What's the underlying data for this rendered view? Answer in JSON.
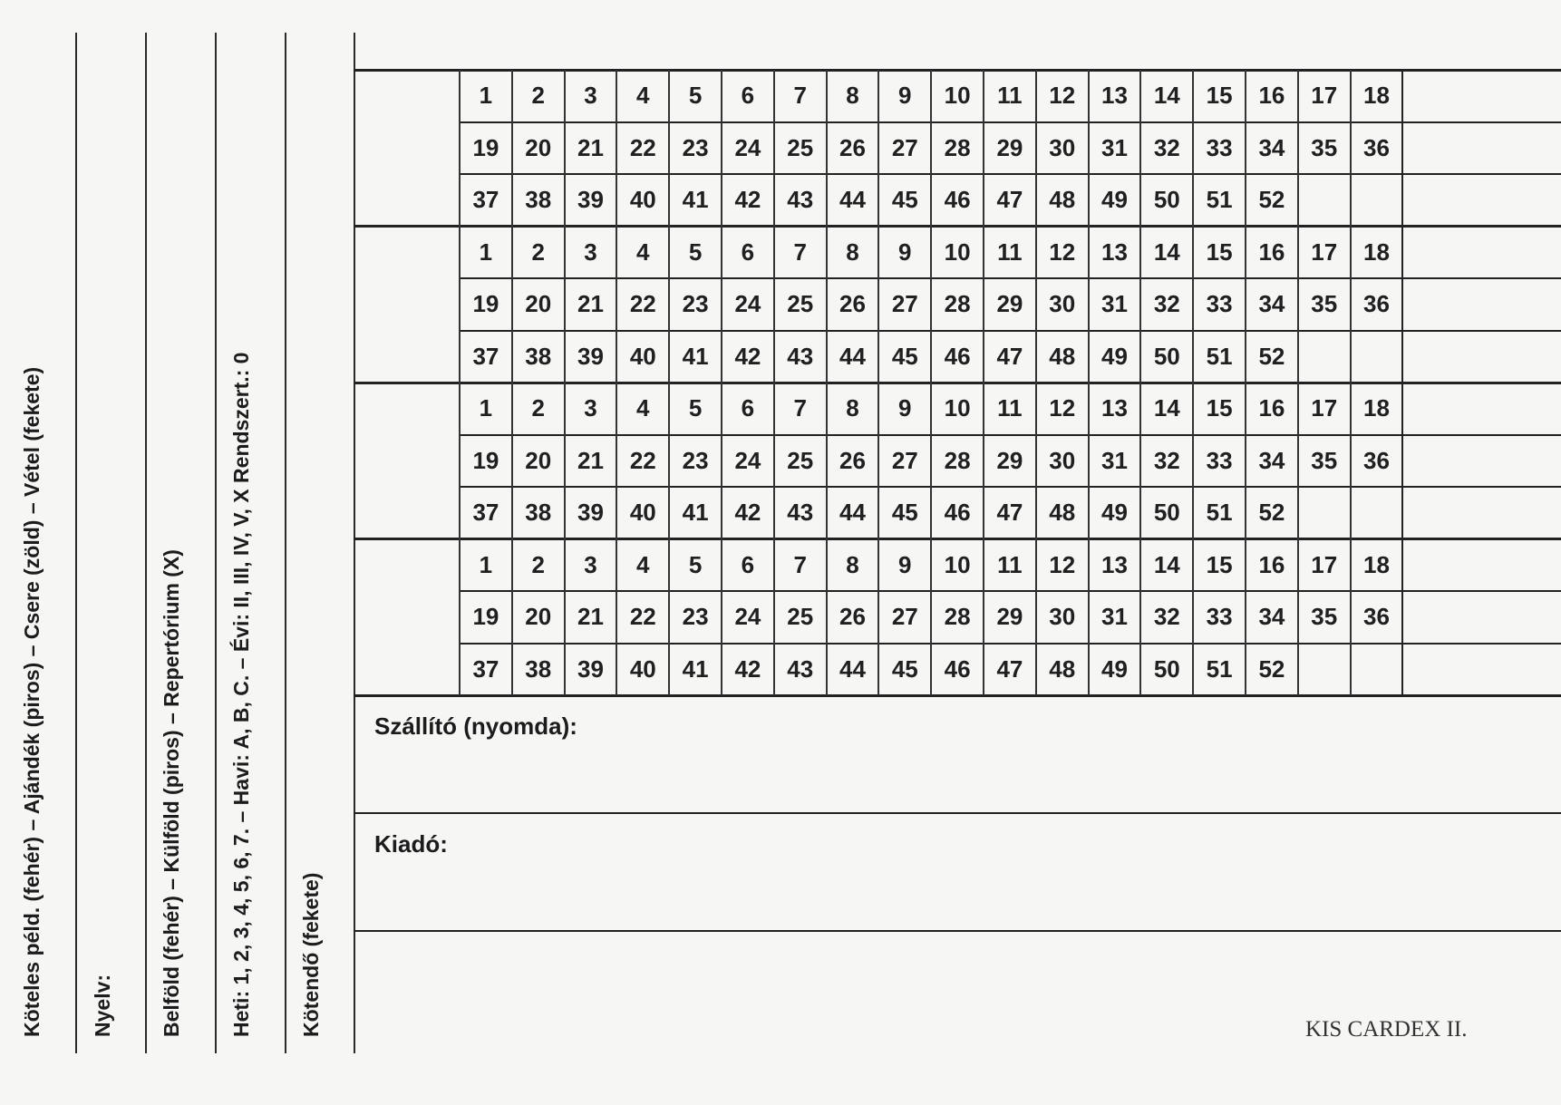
{
  "side_labels": [
    "Köteles péld. (fehér) – Ajándék (piros) – Csere (zöld) – Vétel (fekete)",
    "Nyelv:",
    "Belföld (fehér) – Külföld (piros) – Repertórium (X)",
    "Heti: 1, 2, 3, 4, 5, 6, 7. – Havi: A, B, C. – Évi: II, III, IV, V, X Rendszert.: 0",
    "Kötendő (fekete)"
  ],
  "grid": {
    "blocks": 4,
    "rows": [
      [
        "1",
        "2",
        "3",
        "4",
        "5",
        "6",
        "7",
        "8",
        "9",
        "10",
        "11",
        "12",
        "13",
        "14",
        "15",
        "16",
        "17",
        "18"
      ],
      [
        "19",
        "20",
        "21",
        "22",
        "23",
        "24",
        "25",
        "26",
        "27",
        "28",
        "29",
        "30",
        "31",
        "32",
        "33",
        "34",
        "35",
        "36"
      ],
      [
        "37",
        "38",
        "39",
        "40",
        "41",
        "42",
        "43",
        "44",
        "45",
        "46",
        "47",
        "48",
        "49",
        "50",
        "51",
        "52",
        "",
        ""
      ]
    ]
  },
  "fields": {
    "supplier": "Szállító (nyomda):",
    "publisher": "Kiadó:"
  },
  "footer": "KIS CARDEX II."
}
